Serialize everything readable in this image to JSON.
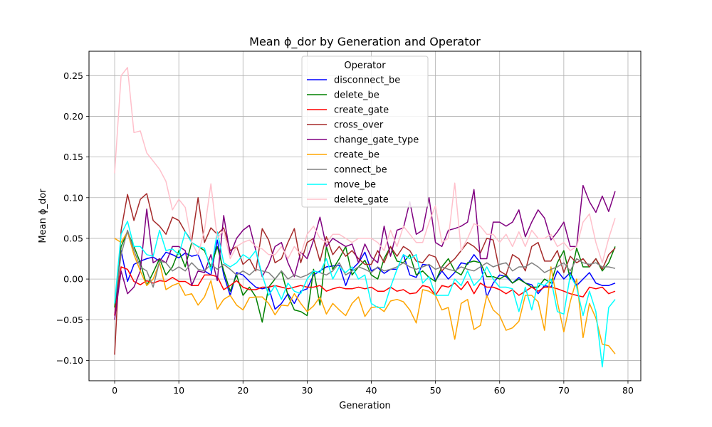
{
  "chart_data": {
    "type": "line",
    "title": "Mean ϕ_dor by Generation and Operator",
    "xlabel": "Generation",
    "ylabel": "Mean ϕ_dor",
    "xlim": [
      -4,
      82
    ],
    "ylim": [
      -0.125,
      0.28
    ],
    "xticks": [
      0,
      10,
      20,
      30,
      40,
      50,
      60,
      70,
      80
    ],
    "yticks": [
      -0.1,
      -0.05,
      0.0,
      0.05,
      0.1,
      0.15,
      0.2,
      0.25
    ],
    "ytick_labels": [
      "−0.10",
      "−0.05",
      "0.00",
      "0.05",
      "0.10",
      "0.15",
      "0.20",
      "0.25"
    ],
    "grid": true,
    "legend_title": "Operator",
    "legend_position": "upper-center",
    "x": [
      0,
      1,
      2,
      3,
      4,
      5,
      6,
      7,
      8,
      9,
      10,
      11,
      12,
      13,
      14,
      15,
      16,
      17,
      18,
      19,
      20,
      21,
      22,
      23,
      24,
      25,
      26,
      27,
      28,
      29,
      30,
      31,
      32,
      33,
      34,
      35,
      36,
      37,
      38,
      39,
      40,
      41,
      42,
      43,
      44,
      45,
      46,
      47,
      48,
      49,
      50,
      51,
      52,
      53,
      54,
      55,
      56,
      57,
      58,
      59,
      60,
      61,
      62,
      63,
      64,
      65,
      66,
      67,
      68,
      69,
      70,
      71,
      72,
      73,
      74,
      75,
      76,
      77,
      78
    ],
    "series": [
      {
        "name": "disconnect_be",
        "color": "#0000ff",
        "values": [
          -0.045,
          0.035,
          -0.003,
          0.018,
          0.022,
          0.025,
          0.027,
          0.022,
          0.033,
          0.03,
          0.026,
          0.032,
          0.028,
          0.03,
          0.01,
          0.005,
          0.048,
          0.005,
          -0.02,
          0.008,
          0.005,
          -0.003,
          -0.01,
          -0.012,
          -0.01,
          -0.037,
          -0.03,
          -0.018,
          -0.03,
          -0.015,
          -0.012,
          0.005,
          0.01,
          0.015,
          0.016,
          0.017,
          -0.008,
          0.012,
          0.02,
          0.033,
          0.01,
          0.014,
          0.007,
          0.012,
          0.012,
          0.03,
          0.005,
          0.002,
          0.018,
          0.017,
          -0.002,
          0.01,
          0.0,
          0.008,
          0.02,
          0.018,
          0.03,
          0.02,
          -0.022,
          -0.005,
          0.005,
          0.003,
          -0.005,
          0.002,
          -0.005,
          -0.007,
          -0.018,
          -0.008,
          -0.01,
          0.01,
          0.0,
          0.008,
          -0.008,
          0.0,
          0.008,
          -0.005,
          -0.008,
          -0.008,
          -0.005
        ]
      },
      {
        "name": "delete_be",
        "color": "#008000",
        "values": [
          -0.035,
          0.04,
          0.058,
          0.04,
          0.02,
          -0.008,
          0.008,
          0.025,
          0.005,
          0.015,
          0.035,
          0.015,
          0.045,
          0.04,
          0.035,
          0.015,
          0.04,
          0.01,
          -0.015,
          0.005,
          -0.02,
          -0.01,
          -0.022,
          -0.053,
          -0.01,
          0.0,
          0.01,
          -0.02,
          -0.038,
          -0.04,
          -0.045,
          0.012,
          -0.032,
          0.04,
          0.012,
          0.025,
          0.04,
          0.005,
          0.015,
          0.023,
          0.005,
          0.0,
          0.025,
          0.04,
          0.022,
          0.02,
          0.03,
          0.005,
          0.01,
          0.002,
          -0.003,
          0.015,
          0.025,
          0.01,
          0.005,
          0.02,
          0.022,
          0.02,
          0.003,
          0.003,
          0.0,
          0.005,
          -0.005,
          0.0,
          -0.005,
          -0.01,
          -0.01,
          0.0,
          -0.005,
          0.02,
          0.035,
          0.0,
          0.038,
          0.015,
          0.015,
          0.025,
          0.01,
          0.02,
          0.04
        ]
      },
      {
        "name": "create_gate",
        "color": "#ff0000",
        "values": [
          -0.045,
          0.015,
          0.012,
          -0.003,
          -0.007,
          -0.002,
          -0.005,
          -0.002,
          -0.003,
          0.002,
          -0.003,
          -0.003,
          -0.008,
          -0.008,
          0.005,
          0.005,
          0.003,
          -0.013,
          -0.008,
          -0.002,
          -0.01,
          -0.013,
          -0.013,
          -0.01,
          -0.01,
          -0.008,
          -0.01,
          -0.012,
          -0.01,
          -0.008,
          -0.01,
          -0.01,
          -0.008,
          -0.015,
          -0.012,
          -0.01,
          -0.012,
          -0.012,
          -0.01,
          -0.012,
          -0.01,
          -0.015,
          -0.015,
          -0.01,
          -0.015,
          -0.013,
          -0.018,
          -0.017,
          -0.008,
          -0.01,
          -0.02,
          -0.008,
          -0.01,
          -0.005,
          -0.013,
          -0.003,
          -0.018,
          -0.005,
          -0.01,
          -0.01,
          -0.013,
          -0.018,
          -0.013,
          -0.02,
          -0.015,
          -0.01,
          -0.015,
          -0.01,
          -0.01,
          -0.012,
          -0.015,
          -0.018,
          -0.02,
          -0.022,
          -0.01,
          -0.012,
          -0.01,
          -0.018,
          -0.015
        ]
      },
      {
        "name": "cross_over",
        "color": "#a52a2a",
        "values": [
          -0.093,
          0.06,
          0.104,
          0.072,
          0.098,
          0.105,
          0.072,
          0.065,
          0.055,
          0.076,
          0.072,
          0.058,
          0.047,
          0.1,
          0.045,
          0.063,
          0.055,
          0.063,
          0.035,
          0.04,
          0.018,
          0.025,
          0.01,
          0.062,
          0.048,
          0.02,
          0.025,
          0.045,
          0.062,
          0.02,
          0.045,
          0.05,
          0.022,
          0.052,
          0.03,
          0.04,
          0.028,
          0.035,
          0.025,
          0.018,
          0.018,
          0.035,
          0.02,
          0.04,
          0.028,
          0.04,
          0.035,
          0.022,
          0.02,
          0.03,
          0.027,
          0.01,
          0.018,
          0.025,
          0.035,
          0.045,
          0.04,
          0.032,
          0.05,
          0.048,
          0.01,
          0.005,
          0.03,
          0.025,
          0.01,
          0.04,
          0.045,
          0.022,
          0.022,
          0.035,
          0.008,
          0.028,
          0.02,
          0.025,
          0.015,
          0.025,
          0.012,
          0.03,
          0.038
        ]
      },
      {
        "name": "change_gate_type",
        "color": "#800080",
        "values": [
          -0.05,
          0.01,
          -0.018,
          -0.01,
          0.01,
          0.086,
          0.02,
          0.025,
          0.02,
          0.04,
          0.04,
          0.035,
          -0.008,
          0.01,
          0.008,
          0.03,
          -0.002,
          0.078,
          0.03,
          0.05,
          0.06,
          0.066,
          0.035,
          0.003,
          0.018,
          0.04,
          0.045,
          0.02,
          0.003,
          0.033,
          0.025,
          0.048,
          0.076,
          0.04,
          0.05,
          0.045,
          0.04,
          0.043,
          0.02,
          0.043,
          0.027,
          0.02,
          0.065,
          0.028,
          0.06,
          0.063,
          0.095,
          0.055,
          0.06,
          0.1,
          0.045,
          0.04,
          0.06,
          0.062,
          0.065,
          0.07,
          0.11,
          0.025,
          0.025,
          0.07,
          0.07,
          0.065,
          0.07,
          0.085,
          0.052,
          0.07,
          0.085,
          0.075,
          0.048,
          0.058,
          0.07,
          0.04,
          0.04,
          0.115,
          0.095,
          0.082,
          0.102,
          0.083,
          0.108
        ]
      },
      {
        "name": "create_be",
        "color": "#ffa500",
        "values": [
          0.05,
          0.045,
          0.058,
          0.03,
          0.01,
          -0.008,
          0.0,
          0.02,
          -0.013,
          -0.008,
          -0.005,
          -0.02,
          -0.018,
          -0.032,
          -0.022,
          -0.002,
          -0.037,
          -0.025,
          -0.02,
          -0.032,
          -0.038,
          -0.023,
          -0.022,
          -0.022,
          -0.03,
          -0.044,
          -0.032,
          -0.033,
          -0.018,
          -0.03,
          -0.04,
          -0.033,
          -0.022,
          -0.043,
          -0.03,
          -0.038,
          -0.045,
          -0.03,
          -0.022,
          -0.046,
          -0.035,
          -0.034,
          -0.04,
          -0.027,
          -0.025,
          -0.028,
          -0.038,
          -0.054,
          -0.013,
          -0.015,
          -0.02,
          -0.038,
          -0.035,
          -0.074,
          -0.03,
          -0.025,
          -0.062,
          -0.057,
          -0.02,
          -0.038,
          -0.045,
          -0.063,
          -0.06,
          -0.052,
          -0.02,
          -0.02,
          -0.028,
          -0.063,
          0.015,
          -0.028,
          -0.065,
          -0.028,
          0.0,
          -0.072,
          -0.03,
          -0.048,
          -0.08,
          -0.082,
          -0.092
        ]
      },
      {
        "name": "connect_be",
        "color": "#808080",
        "values": [
          -0.03,
          0.03,
          0.06,
          0.035,
          0.015,
          0.01,
          -0.01,
          0.022,
          0.02,
          0.01,
          0.015,
          0.01,
          0.02,
          0.012,
          0.01,
          0.018,
          0.012,
          0.018,
          0.012,
          0.005,
          0.01,
          0.005,
          0.012,
          0.01,
          0.008,
          0.0,
          0.01,
          0.0,
          0.005,
          0.002,
          0.005,
          0.01,
          0.008,
          0.005,
          0.01,
          0.02,
          0.005,
          0.01,
          0.015,
          0.012,
          0.008,
          0.015,
          0.01,
          0.012,
          0.015,
          0.02,
          0.015,
          0.012,
          0.015,
          0.018,
          0.012,
          0.015,
          0.012,
          0.01,
          0.015,
          0.012,
          0.01,
          0.015,
          0.02,
          0.015,
          0.018,
          0.02,
          0.01,
          0.015,
          0.015,
          0.02,
          0.015,
          0.008,
          0.012,
          0.015,
          0.02,
          0.01,
          0.025,
          0.02,
          0.018,
          0.02,
          0.015,
          0.015,
          0.013
        ]
      },
      {
        "name": "move_be",
        "color": "#00ffff",
        "values": [
          -0.03,
          0.055,
          0.071,
          0.04,
          0.04,
          0.03,
          0.028,
          0.06,
          0.035,
          0.037,
          0.03,
          0.058,
          0.045,
          0.04,
          0.038,
          0.01,
          0.058,
          0.02,
          0.015,
          0.02,
          0.03,
          0.025,
          0.035,
          0.005,
          -0.02,
          -0.008,
          -0.025,
          -0.005,
          -0.015,
          -0.018,
          0.0,
          0.01,
          0.008,
          0.025,
          0.0,
          0.015,
          0.008,
          0.015,
          0.0,
          0.005,
          -0.03,
          -0.035,
          -0.035,
          -0.01,
          0.012,
          0.03,
          0.025,
          0.03,
          -0.005,
          0.003,
          -0.02,
          -0.02,
          -0.02,
          0.0,
          -0.008,
          0.01,
          -0.008,
          0.0,
          0.015,
          0.0,
          -0.01,
          -0.01,
          -0.012,
          -0.04,
          -0.01,
          -0.038,
          -0.005,
          -0.008,
          0.0,
          -0.04,
          -0.043,
          0.005,
          -0.01,
          -0.045,
          -0.015,
          -0.04,
          -0.108,
          -0.035,
          -0.025
        ]
      },
      {
        "name": "delete_gate",
        "color": "#ffc0cb",
        "values": [
          0.13,
          0.25,
          0.26,
          0.18,
          0.182,
          0.155,
          0.145,
          0.135,
          0.12,
          0.085,
          0.098,
          0.088,
          0.045,
          0.03,
          0.06,
          0.117,
          0.05,
          0.06,
          0.025,
          0.04,
          0.045,
          0.048,
          0.04,
          0.037,
          0.03,
          0.03,
          0.04,
          0.025,
          0.04,
          0.03,
          0.055,
          0.065,
          0.05,
          0.045,
          0.055,
          0.055,
          0.05,
          0.045,
          0.05,
          0.05,
          0.05,
          0.045,
          0.035,
          0.06,
          0.04,
          0.065,
          0.055,
          0.045,
          0.045,
          0.07,
          0.09,
          0.045,
          0.05,
          0.118,
          0.035,
          0.05,
          0.068,
          0.065,
          0.055,
          0.055,
          0.045,
          0.055,
          0.04,
          0.058,
          0.04,
          0.06,
          0.05,
          0.05,
          0.055,
          0.04,
          0.045,
          0.035,
          0.04,
          0.07,
          0.08,
          0.045,
          0.02,
          0.05,
          0.075
        ]
      }
    ]
  }
}
